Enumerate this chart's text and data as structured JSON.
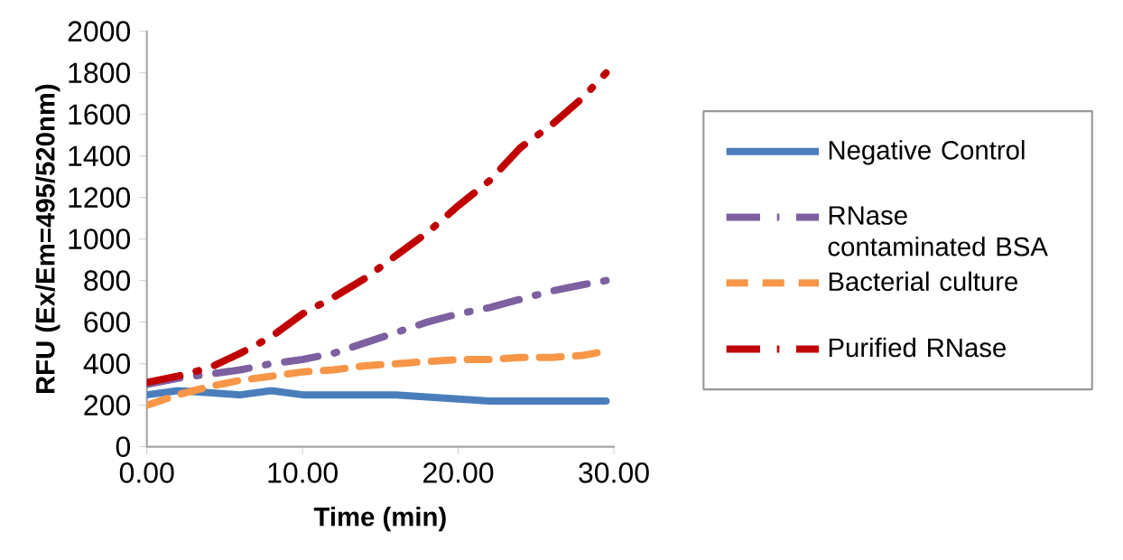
{
  "chart_data": {
    "type": "line",
    "xlabel": "Time (min)",
    "ylabel": "RFU (Ex/Em=495/520nm)",
    "x": [
      0,
      2,
      4,
      6,
      8,
      10,
      12,
      14,
      16,
      18,
      20,
      22,
      24,
      26,
      28,
      29.5
    ],
    "series": [
      {
        "name": "Negative Control",
        "color": "#4a7ebb",
        "line_style": "solid",
        "values": [
          250,
          270,
          260,
          250,
          270,
          250,
          250,
          250,
          250,
          240,
          230,
          220,
          220,
          220,
          220,
          220
        ]
      },
      {
        "name": "RNase contaminated BSA",
        "color": "#7d60a0",
        "line_style": "dashdot",
        "values": [
          300,
          330,
          350,
          370,
          400,
          420,
          450,
          500,
          550,
          600,
          640,
          670,
          710,
          750,
          780,
          800
        ]
      },
      {
        "name": "Bacterial culture",
        "color": "#f79646",
        "line_style": "dashed",
        "values": [
          200,
          250,
          290,
          320,
          340,
          360,
          370,
          390,
          400,
          410,
          420,
          420,
          430,
          430,
          440,
          460
        ]
      },
      {
        "name": "Purified RNase",
        "color": "#c00000",
        "line_style": "dashdot",
        "values": [
          310,
          340,
          380,
          450,
          530,
          640,
          720,
          810,
          920,
          1030,
          1160,
          1280,
          1440,
          1550,
          1680,
          1800
        ]
      }
    ],
    "xlim": [
      0,
      30
    ],
    "xticks": [
      {
        "value": 0,
        "label": "0.00"
      },
      {
        "value": 10,
        "label": "10.00"
      },
      {
        "value": 20,
        "label": "20.00"
      },
      {
        "value": 30,
        "label": "30.00"
      }
    ],
    "ylim": [
      0,
      2000
    ],
    "yticks": [
      0,
      200,
      400,
      600,
      800,
      1000,
      1200,
      1400,
      1600,
      1800,
      2000
    ],
    "legend": "right",
    "grid": false
  }
}
